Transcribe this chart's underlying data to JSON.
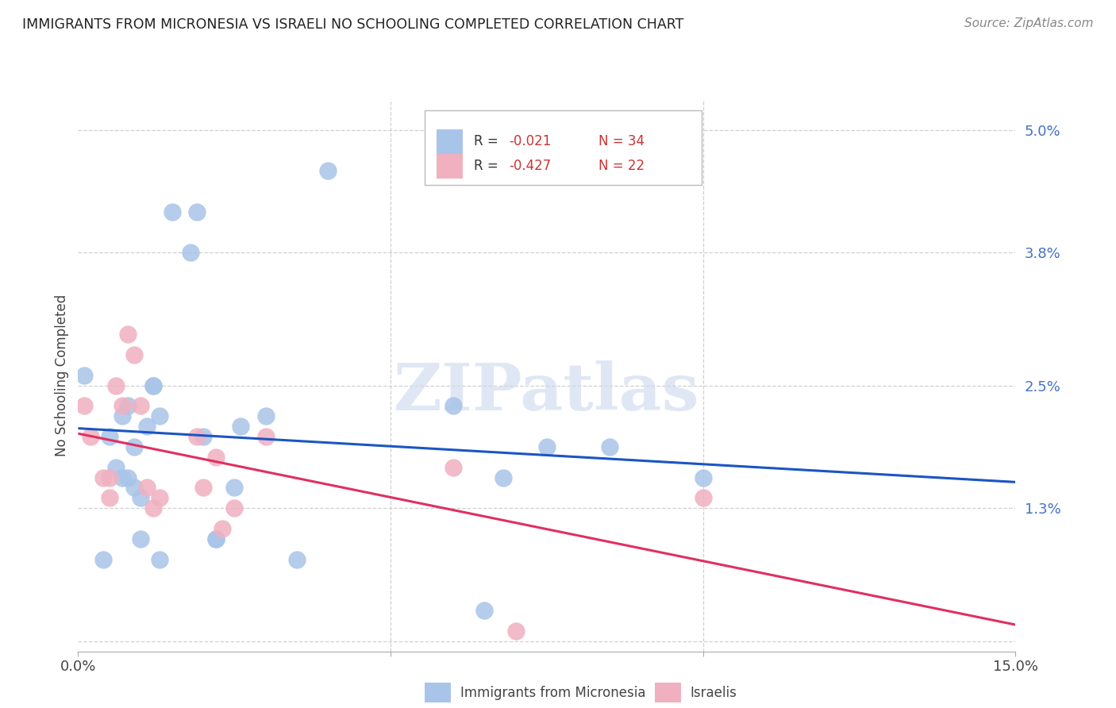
{
  "title": "IMMIGRANTS FROM MICRONESIA VS ISRAELI NO SCHOOLING COMPLETED CORRELATION CHART",
  "source": "Source: ZipAtlas.com",
  "ylabel": "No Schooling Completed",
  "yticks": [
    0.0,
    0.013,
    0.025,
    0.038,
    0.05
  ],
  "ytick_labels": [
    "",
    "1.3%",
    "2.5%",
    "3.8%",
    "5.0%"
  ],
  "xlim": [
    0.0,
    0.15
  ],
  "ylim": [
    -0.001,
    0.053
  ],
  "blue_color": "#a8c4e8",
  "pink_color": "#f0b0c0",
  "line_blue": "#1a56c4",
  "line_pink": "#e03060",
  "watermark_text": "ZIPatlas",
  "watermark_color": "#ccd8ee",
  "blue_r": "-0.021",
  "blue_n": "34",
  "pink_r": "-0.427",
  "pink_n": "22",
  "legend_label_blue": "Immigrants from Micronesia",
  "legend_label_pink": "Israelis",
  "blue_scatter_x": [
    0.001,
    0.004,
    0.005,
    0.006,
    0.007,
    0.007,
    0.008,
    0.008,
    0.009,
    0.009,
    0.01,
    0.01,
    0.011,
    0.012,
    0.012,
    0.013,
    0.013,
    0.015,
    0.018,
    0.019,
    0.02,
    0.022,
    0.022,
    0.025,
    0.026,
    0.03,
    0.035,
    0.04,
    0.06,
    0.065,
    0.068,
    0.075,
    0.085,
    0.1
  ],
  "blue_scatter_y": [
    0.026,
    0.008,
    0.02,
    0.017,
    0.022,
    0.016,
    0.016,
    0.023,
    0.015,
    0.019,
    0.014,
    0.01,
    0.021,
    0.025,
    0.025,
    0.022,
    0.008,
    0.042,
    0.038,
    0.042,
    0.02,
    0.01,
    0.01,
    0.015,
    0.021,
    0.022,
    0.008,
    0.046,
    0.023,
    0.003,
    0.016,
    0.019,
    0.019,
    0.016
  ],
  "pink_scatter_x": [
    0.001,
    0.002,
    0.004,
    0.005,
    0.005,
    0.006,
    0.007,
    0.008,
    0.009,
    0.01,
    0.011,
    0.012,
    0.013,
    0.019,
    0.02,
    0.022,
    0.023,
    0.025,
    0.03,
    0.06,
    0.07,
    0.1
  ],
  "pink_scatter_y": [
    0.023,
    0.02,
    0.016,
    0.016,
    0.014,
    0.025,
    0.023,
    0.03,
    0.028,
    0.023,
    0.015,
    0.013,
    0.014,
    0.02,
    0.015,
    0.018,
    0.011,
    0.013,
    0.02,
    0.017,
    0.001,
    0.014
  ],
  "grid_color": "#d0d0d0",
  "xtick_positions": [
    0.0,
    0.05,
    0.1,
    0.15
  ],
  "xtick_labels_show": [
    "0.0%",
    "",
    "",
    "15.0%"
  ]
}
